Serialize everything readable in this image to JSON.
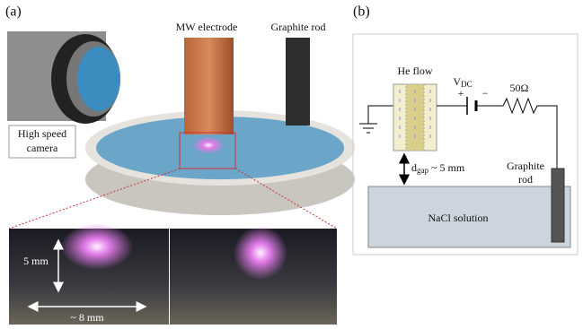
{
  "panels": {
    "a": {
      "label": "(a)",
      "camera_label": [
        "High speed",
        "camera"
      ],
      "electrode_label": "MW electrode",
      "rod_label": "Graphite rod",
      "height_label": "5 mm",
      "width_label": "~ 8 mm"
    },
    "b": {
      "label": "(b)",
      "flow_label": "He flow",
      "voltage_label": {
        "main": "V",
        "sub": "DC"
      },
      "plus": "+",
      "minus": "−",
      "resistor_label": "50Ω",
      "gap_label": {
        "main": "d",
        "sub": "gap",
        "rest": " ~ 5 mm"
      },
      "rod_label": [
        "Graphite",
        "rod"
      ],
      "solution_label": "NaCl solution"
    }
  }
}
